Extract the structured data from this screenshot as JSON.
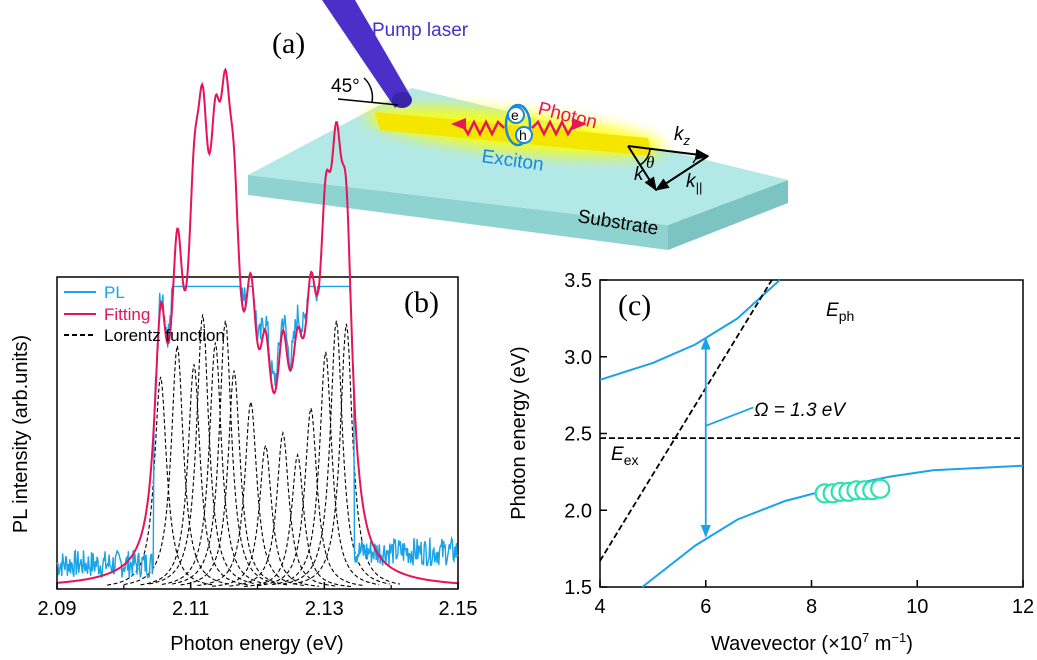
{
  "panel_a": {
    "label": "(a)",
    "pump_label": "Pump laser",
    "angle_label": "45°",
    "photon_label": "Photon",
    "exciton_label": "Exciton",
    "electron_label": "e",
    "hole_label": "h",
    "substrate_label": "Substrate",
    "kz_label": "k",
    "kz_sub": "z",
    "k_label": "k",
    "kpar_label": "k",
    "kpar_sub": "||",
    "theta_label": "θ",
    "colors": {
      "pump": "#4a2fc9",
      "substrate_top": "#b2e8e6",
      "glow": "#ffff00",
      "photon": "#e8155d",
      "exciton": "#1787e3"
    }
  },
  "chart_data": [
    {
      "type": "line",
      "panel_label": "(b)",
      "xlabel": "Photon energy (eV)",
      "ylabel": "PL intensity (arb.units)",
      "xlim": [
        2.09,
        2.15
      ],
      "xticks": [
        "2.09",
        "2.11",
        "2.13",
        "2.15"
      ],
      "xtick_values": [
        2.09,
        2.11,
        2.13,
        2.15
      ],
      "legend": [
        "PL",
        "Fitting",
        "Lorentz function"
      ],
      "legend_position": "top-left",
      "series": [
        {
          "name": "PL",
          "color": "#1aa3e8"
        },
        {
          "name": "Fitting",
          "color": "#e6135b"
        },
        {
          "name": "Lorentz function",
          "color": "#000000",
          "dash": true
        }
      ],
      "peaks": [
        {
          "x": 2.1055,
          "amp": 0.68
        },
        {
          "x": 2.108,
          "amp": 0.78
        },
        {
          "x": 2.1105,
          "amp": 0.72
        },
        {
          "x": 2.1118,
          "amp": 0.88
        },
        {
          "x": 2.1137,
          "amp": 0.79
        },
        {
          "x": 2.1152,
          "amp": 0.86
        },
        {
          "x": 2.1165,
          "amp": 0.7
        },
        {
          "x": 2.119,
          "amp": 0.6
        },
        {
          "x": 2.1212,
          "amp": 0.46
        },
        {
          "x": 2.1238,
          "amp": 0.5
        },
        {
          "x": 2.126,
          "amp": 0.43
        },
        {
          "x": 2.128,
          "amp": 0.58
        },
        {
          "x": 2.1302,
          "amp": 0.76
        },
        {
          "x": 2.1318,
          "amp": 0.86
        },
        {
          "x": 2.1333,
          "amp": 0.85
        }
      ],
      "peak_width": 0.0011,
      "pl_baseline": 0.08
    },
    {
      "type": "line",
      "panel_label": "(c)",
      "xlabel": "Wavevector (×10",
      "xlabel_sup": "7",
      "xlabel_tail": " m",
      "xlabel_sup2": "−1",
      "xlabel_close": ")",
      "ylabel": "Photon energy (eV)",
      "xlim": [
        4,
        12
      ],
      "ylim": [
        1.5,
        3.5
      ],
      "xticks": [
        "4",
        "6",
        "8",
        "10",
        "12"
      ],
      "xtick_values": [
        4,
        6,
        8,
        10,
        12
      ],
      "yticks": [
        "1.5",
        "2.0",
        "2.5",
        "3.0",
        "3.5"
      ],
      "ytick_values": [
        1.5,
        2.0,
        2.5,
        3.0,
        3.5
      ],
      "annotations": {
        "eph": "E",
        "eph_sub": "ph",
        "eex": "E",
        "eex_sub": "ex",
        "omega": "Ω = 1.3 eV"
      },
      "series": [
        {
          "name": "upper polariton",
          "color": "#1aa3e8",
          "x": [
            4.0,
            5.0,
            5.8,
            6.6,
            7.4
          ],
          "y": [
            2.85,
            2.96,
            3.08,
            3.25,
            3.5
          ]
        },
        {
          "name": "lower polariton",
          "color": "#1aa3e8",
          "x": [
            4.8,
            5.8,
            6.6,
            7.5,
            8.5,
            9.5,
            10.3,
            12.0
          ],
          "y": [
            1.5,
            1.77,
            1.94,
            2.06,
            2.15,
            2.22,
            2.26,
            2.29
          ]
        },
        {
          "name": "photon line",
          "color": "#000000",
          "dash": true,
          "x": [
            4.0,
            7.25
          ],
          "y": [
            1.67,
            3.5
          ]
        },
        {
          "name": "exciton line",
          "color": "#000000",
          "dash": true,
          "x": [
            4.0,
            12.0
          ],
          "y": [
            2.47,
            2.47
          ]
        }
      ],
      "markers": {
        "color": "#2de0b0",
        "x": [
          8.25,
          8.4,
          8.55,
          8.7,
          8.85,
          9.0,
          9.15,
          9.3
        ],
        "y": [
          2.11,
          2.11,
          2.12,
          2.12,
          2.13,
          2.13,
          2.13,
          2.14
        ]
      },
      "arrow": {
        "x": 6.0,
        "y_from": 1.83,
        "y_to": 3.12
      },
      "omega_pointer": {
        "x": [
          6.0,
          6.9
        ],
        "y": [
          2.55,
          2.67
        ]
      }
    }
  ]
}
